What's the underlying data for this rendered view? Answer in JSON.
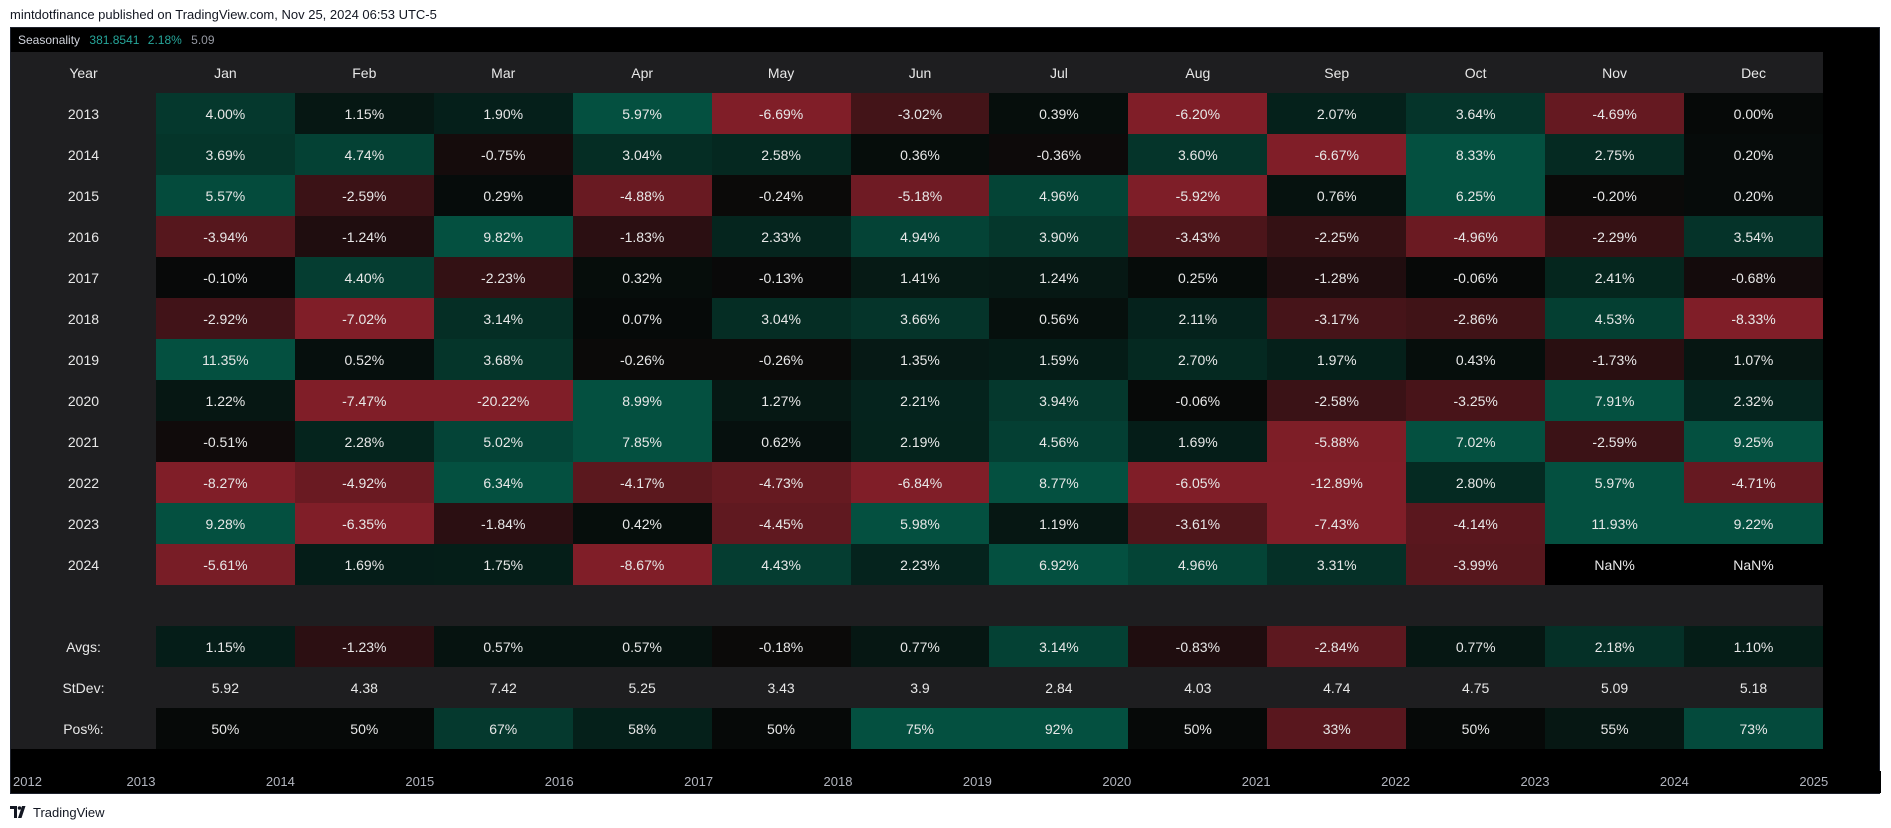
{
  "publish_line": "mintdotfinance published on TradingView.com, Nov 25, 2024 06:53 UTC-5",
  "legend": {
    "name": "Seasonality",
    "value1": "381.8541",
    "value2": "2.18%",
    "value3": "5.09"
  },
  "colors": {
    "green": "#26a69a",
    "red": "#ef5350",
    "header_bg": "#1e1e20",
    "chart_bg": "#000000"
  },
  "table": {
    "header": [
      "Year",
      "Jan",
      "Feb",
      "Mar",
      "Apr",
      "May",
      "Jun",
      "Jul",
      "Aug",
      "Sep",
      "Oct",
      "Nov",
      "Dec"
    ],
    "rows": [
      {
        "year": "2013",
        "values": [
          "4.00%",
          "1.15%",
          "1.90%",
          "5.97%",
          "-6.69%",
          "-3.02%",
          "0.39%",
          "-6.20%",
          "2.07%",
          "3.64%",
          "-4.69%",
          "0.00%"
        ]
      },
      {
        "year": "2014",
        "values": [
          "3.69%",
          "4.74%",
          "-0.75%",
          "3.04%",
          "2.58%",
          "0.36%",
          "-0.36%",
          "3.60%",
          "-6.67%",
          "8.33%",
          "2.75%",
          "0.20%"
        ]
      },
      {
        "year": "2015",
        "values": [
          "5.57%",
          "-2.59%",
          "0.29%",
          "-4.88%",
          "-0.24%",
          "-5.18%",
          "4.96%",
          "-5.92%",
          "0.76%",
          "6.25%",
          "-0.20%",
          "0.20%"
        ]
      },
      {
        "year": "2016",
        "values": [
          "-3.94%",
          "-1.24%",
          "9.82%",
          "-1.83%",
          "2.33%",
          "4.94%",
          "3.90%",
          "-3.43%",
          "-2.25%",
          "-4.96%",
          "-2.29%",
          "3.54%"
        ]
      },
      {
        "year": "2017",
        "values": [
          "-0.10%",
          "4.40%",
          "-2.23%",
          "0.32%",
          "-0.13%",
          "1.41%",
          "1.24%",
          "0.25%",
          "-1.28%",
          "-0.06%",
          "2.41%",
          "-0.68%"
        ]
      },
      {
        "year": "2018",
        "values": [
          "-2.92%",
          "-7.02%",
          "3.14%",
          "0.07%",
          "3.04%",
          "3.66%",
          "0.56%",
          "2.11%",
          "-3.17%",
          "-2.86%",
          "4.53%",
          "-8.33%"
        ]
      },
      {
        "year": "2019",
        "values": [
          "11.35%",
          "0.52%",
          "3.68%",
          "-0.26%",
          "-0.26%",
          "1.35%",
          "1.59%",
          "2.70%",
          "1.97%",
          "0.43%",
          "-1.73%",
          "1.07%"
        ]
      },
      {
        "year": "2020",
        "values": [
          "1.22%",
          "-7.47%",
          "-20.22%",
          "8.99%",
          "1.27%",
          "2.21%",
          "3.94%",
          "-0.06%",
          "-2.58%",
          "-3.25%",
          "7.91%",
          "2.32%"
        ]
      },
      {
        "year": "2021",
        "values": [
          "-0.51%",
          "2.28%",
          "5.02%",
          "7.85%",
          "0.62%",
          "2.19%",
          "4.56%",
          "1.69%",
          "-5.88%",
          "7.02%",
          "-2.59%",
          "9.25%"
        ]
      },
      {
        "year": "2022",
        "values": [
          "-8.27%",
          "-4.92%",
          "6.34%",
          "-4.17%",
          "-4.73%",
          "-6.84%",
          "8.77%",
          "-6.05%",
          "-12.89%",
          "2.80%",
          "5.97%",
          "-4.71%"
        ]
      },
      {
        "year": "2023",
        "values": [
          "9.28%",
          "-6.35%",
          "-1.84%",
          "0.42%",
          "-4.45%",
          "5.98%",
          "1.19%",
          "-3.61%",
          "-7.43%",
          "-4.14%",
          "11.93%",
          "9.22%"
        ]
      },
      {
        "year": "2024",
        "values": [
          "-5.61%",
          "1.69%",
          "1.75%",
          "-8.67%",
          "4.43%",
          "2.23%",
          "6.92%",
          "4.96%",
          "3.31%",
          "-3.99%",
          "NaN%",
          "NaN%"
        ]
      }
    ],
    "stats": [
      {
        "label": "Avgs:",
        "values": [
          "1.15%",
          "-1.23%",
          "0.57%",
          "0.57%",
          "-0.18%",
          "0.77%",
          "3.14%",
          "-0.83%",
          "-2.84%",
          "0.77%",
          "2.18%",
          "1.10%"
        ]
      },
      {
        "label": "StDev:",
        "values": [
          "5.92",
          "4.38",
          "7.42",
          "5.25",
          "3.43",
          "3.9",
          "2.84",
          "4.03",
          "4.74",
          "4.75",
          "5.09",
          "5.18"
        ]
      },
      {
        "label": "Pos%:",
        "values": [
          "50%",
          "50%",
          "67%",
          "58%",
          "50%",
          "75%",
          "92%",
          "50%",
          "33%",
          "50%",
          "55%",
          "73%"
        ]
      }
    ]
  },
  "time_axis": [
    "2012",
    "2013",
    "2014",
    "2015",
    "2016",
    "2017",
    "2018",
    "2019",
    "2020",
    "2021",
    "2022",
    "2023",
    "2024",
    "2025"
  ],
  "footer": {
    "brand": "TradingView",
    "logo_icon": "tradingview-logo-icon"
  }
}
